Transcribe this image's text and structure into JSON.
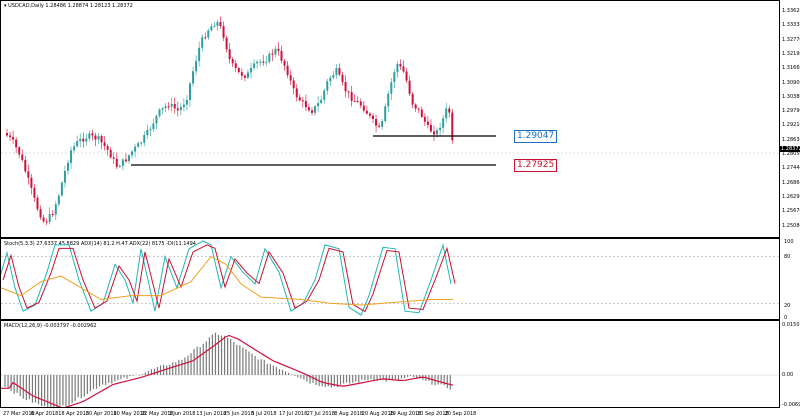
{
  "main": {
    "symbol_header": "USDCAD,Daily  1.28486 1.28874 1.28123 1.28372",
    "price_axis": [
      "1.33620",
      "1.33330",
      "1.32770",
      "1.32190",
      "1.31660",
      "1.30900",
      "1.30380",
      "1.29790",
      "1.29210",
      "1.28630",
      "1.28050",
      "1.27440",
      "1.26860",
      "1.26290",
      "1.25670",
      "1.25080"
    ],
    "current_price": "1.28372",
    "level_labels": [
      "1.29047",
      "1.27925"
    ],
    "colors": {
      "bull": "#2e9e9e",
      "bear": "#d0103a",
      "level": "#000000",
      "label_blue": "#1e6fbf",
      "label_red": "#c8102e"
    }
  },
  "stoch": {
    "header": "Stoch(5,3,3) 27.6337 45.8829  ADX(14) 81.2 H.47  ADX(22) 8175 -DI(11.1494",
    "axis": [
      "100",
      "80",
      "20",
      "0"
    ],
    "colors": {
      "k": "#c8102e",
      "d": "#22b5b5",
      "adx": "#f0a020"
    }
  },
  "macd": {
    "header": "MACD(12,26,9) -0.003797 -0.002962",
    "axis": [
      "0.01503",
      "0.00",
      "-0.00695"
    ],
    "colors": {
      "hist": "#7a7a7a",
      "signal": "#d0103a"
    }
  },
  "time_axis": [
    "27 Mar 2018",
    "6 Apr 2018",
    "18 Apr 2018",
    "30 Apr 2018",
    "10 May 2018",
    "22 May 2018",
    "1 Jun 2018",
    "13 Jun 2018",
    "25 Jun 2018",
    "5 Jul 2018",
    "17 Jul 2018",
    "27 Jul 2018",
    "8 Aug 2018",
    "20 Aug 2018",
    "29 Aug 2018",
    "10 Sep 2018",
    "20 Sep 2018"
  ]
}
